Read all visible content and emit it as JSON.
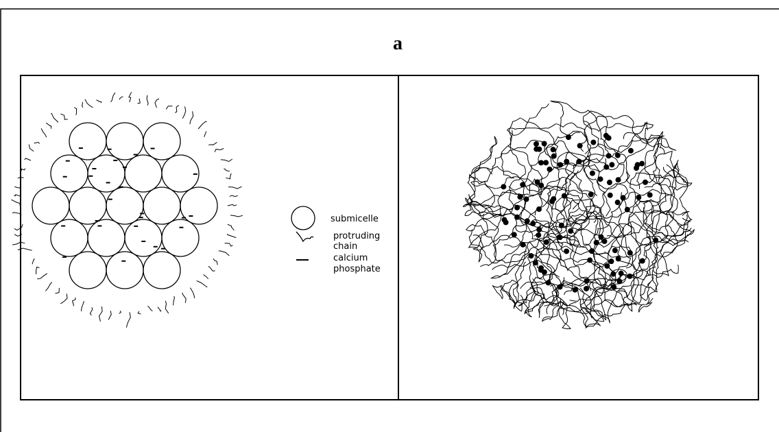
{
  "figure": {
    "title": "a",
    "legend": [
      {
        "lines": [
          "submicelle"
        ]
      },
      {
        "lines": [
          "protruding",
          "chain"
        ]
      },
      {
        "lines": [
          "calcium",
          "phosphate"
        ]
      }
    ]
  }
}
